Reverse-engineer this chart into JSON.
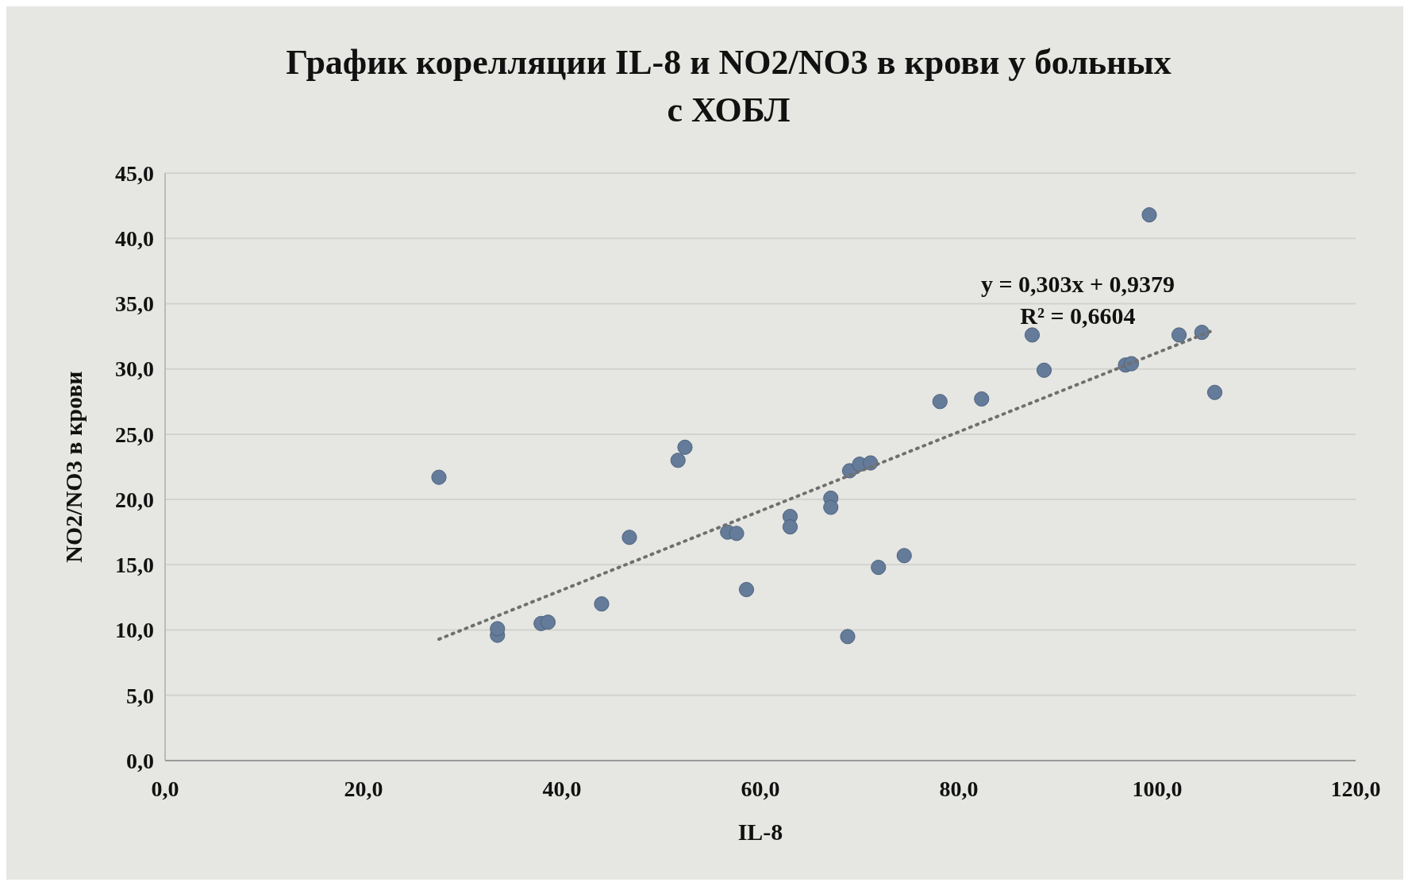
{
  "chart_data": {
    "type": "scatter",
    "title": "График корелляции IL-8 и NO2/NO3 в крови у больных с ХОБЛ",
    "xlabel": "IL-8",
    "ylabel": "NO2/NO3 в крови",
    "xlim": [
      0,
      120
    ],
    "ylim": [
      0,
      45
    ],
    "xticks": [
      {
        "value": 0,
        "label": "0,0"
      },
      {
        "value": 20,
        "label": "20,0"
      },
      {
        "value": 40,
        "label": "40,0"
      },
      {
        "value": 60,
        "label": "60,0"
      },
      {
        "value": 80,
        "label": "80,0"
      },
      {
        "value": 100,
        "label": "100,0"
      },
      {
        "value": 120,
        "label": "120,0"
      }
    ],
    "yticks": [
      {
        "value": 0,
        "label": "0,0"
      },
      {
        "value": 5,
        "label": "5,0"
      },
      {
        "value": 10,
        "label": "10,0"
      },
      {
        "value": 15,
        "label": "15,0"
      },
      {
        "value": 20,
        "label": "20,0"
      },
      {
        "value": 25,
        "label": "25,0"
      },
      {
        "value": 30,
        "label": "30,0"
      },
      {
        "value": 35,
        "label": "35,0"
      },
      {
        "value": 40,
        "label": "40,0"
      },
      {
        "value": 45,
        "label": "45,0"
      }
    ],
    "grid": "y",
    "marker": "circle",
    "series": [
      {
        "color": "#647b99",
        "x": [
          27.6,
          33.5,
          33.5,
          37.9,
          38.6,
          44.0,
          46.8,
          51.7,
          52.4,
          56.7,
          57.6,
          58.6,
          63.0,
          63.0,
          67.1,
          67.1,
          69.0,
          70.0,
          71.1,
          68.8,
          71.9,
          74.5,
          78.1,
          82.3,
          87.4,
          88.6,
          96.8,
          97.4,
          99.2,
          102.2,
          104.5,
          105.8
        ],
        "values": [
          21.7,
          9.6,
          10.1,
          10.5,
          10.6,
          12.0,
          17.1,
          23.0,
          24.0,
          17.5,
          17.4,
          13.1,
          18.7,
          17.9,
          20.1,
          19.4,
          22.2,
          22.7,
          22.8,
          9.5,
          14.8,
          15.7,
          27.5,
          27.7,
          32.6,
          29.9,
          30.3,
          30.4,
          41.8,
          32.6,
          32.8,
          28.2
        ]
      },
      {
        "type": "line",
        "color": "#6f6f6f",
        "line_style": "dotted",
        "marker": "none",
        "x": [
          27.6,
          105.8
        ],
        "values": [
          9.3,
          33.0
        ]
      }
    ],
    "annotations": [
      "y = 0,303x + 0,9379",
      "R² = 0,6604"
    ]
  }
}
